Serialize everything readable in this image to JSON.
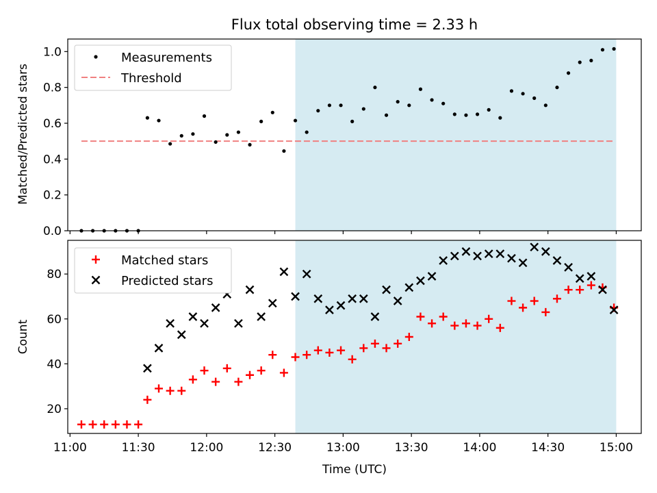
{
  "figure": {
    "title": "Flux total observing time = 2.33 h",
    "xlabel": "Time (UTC)",
    "xticks": [
      "11:00",
      "11:30",
      "12:00",
      "12:30",
      "13:00",
      "13:30",
      "14:00",
      "14:30",
      "15:00"
    ],
    "shaded_region": {
      "start": "12:39",
      "end": "15:00",
      "color": "#add8e6"
    }
  },
  "chart_data": [
    {
      "type": "scatter",
      "title": "Flux total observing time = 2.33 h",
      "xlabel": "",
      "ylabel": "Matched/Predicted stars",
      "xlim": [
        "10:59",
        "15:11"
      ],
      "ylim": [
        0,
        1.07
      ],
      "yticks": [
        "0.0",
        "0.2",
        "0.4",
        "0.6",
        "0.8",
        "1.0"
      ],
      "legend_position": "upper-left",
      "series": [
        {
          "name": "Measurements",
          "marker": "dot",
          "color": "#000000",
          "x": [
            "11:05",
            "11:10",
            "11:15",
            "11:20",
            "11:25",
            "11:30",
            "11:34",
            "11:39",
            "11:44",
            "11:49",
            "11:54",
            "11:59",
            "12:04",
            "12:09",
            "12:14",
            "12:19",
            "12:24",
            "12:29",
            "12:34",
            "12:39",
            "12:44",
            "12:49",
            "12:54",
            "12:59",
            "13:04",
            "13:09",
            "13:14",
            "13:19",
            "13:24",
            "13:29",
            "13:34",
            "13:39",
            "13:44",
            "13:49",
            "13:54",
            "13:59",
            "14:04",
            "14:09",
            "14:14",
            "14:19",
            "14:24",
            "14:29",
            "14:34",
            "14:39",
            "14:44",
            "14:49",
            "14:54",
            "14:59"
          ],
          "y": [
            0,
            0,
            0,
            0,
            0,
            0,
            0.63,
            0.615,
            0.485,
            0.53,
            0.54,
            0.64,
            0.495,
            0.535,
            0.55,
            0.48,
            0.61,
            0.66,
            0.445,
            0.615,
            0.55,
            0.67,
            0.7,
            0.7,
            0.61,
            0.68,
            0.8,
            0.645,
            0.72,
            0.7,
            0.79,
            0.73,
            0.71,
            0.65,
            0.645,
            0.65,
            0.675,
            0.63,
            0.78,
            0.765,
            0.74,
            0.7,
            0.8,
            0.88,
            0.94,
            0.95,
            1.01,
            1.015
          ]
        },
        {
          "name": "Threshold",
          "type": "line",
          "style": "dashed",
          "color": "#f08080",
          "x": [
            "11:05",
            "14:59"
          ],
          "y": [
            0.5,
            0.5
          ]
        }
      ]
    },
    {
      "type": "scatter",
      "xlabel": "Time (UTC)",
      "ylabel": "Count",
      "xlim": [
        "10:59",
        "15:11"
      ],
      "ylim": [
        9,
        95
      ],
      "yticks": [
        "20",
        "40",
        "60",
        "80"
      ],
      "legend_position": "upper-left",
      "series": [
        {
          "name": "Matched stars",
          "marker": "plus",
          "color": "#ff0000",
          "x": [
            "11:05",
            "11:10",
            "11:15",
            "11:20",
            "11:25",
            "11:30",
            "11:34",
            "11:39",
            "11:44",
            "11:49",
            "11:54",
            "11:59",
            "12:04",
            "12:09",
            "12:14",
            "12:19",
            "12:24",
            "12:29",
            "12:34",
            "12:39",
            "12:44",
            "12:49",
            "12:54",
            "12:59",
            "13:04",
            "13:09",
            "13:14",
            "13:19",
            "13:24",
            "13:29",
            "13:34",
            "13:39",
            "13:44",
            "13:49",
            "13:54",
            "13:59",
            "14:04",
            "14:09",
            "14:14",
            "14:19",
            "14:24",
            "14:29",
            "14:34",
            "14:39",
            "14:44",
            "14:49",
            "14:54",
            "14:59"
          ],
          "y": [
            13,
            13,
            13,
            13,
            13,
            13,
            24,
            29,
            28,
            28,
            33,
            37,
            32,
            38,
            32,
            35,
            37,
            44,
            36,
            43,
            44,
            46,
            45,
            46,
            42,
            47,
            49,
            47,
            49,
            52,
            61,
            58,
            61,
            57,
            58,
            57,
            60,
            56,
            68,
            65,
            68,
            63,
            69,
            73,
            73,
            75,
            74,
            65
          ]
        },
        {
          "name": "Predicted stars",
          "marker": "x",
          "color": "#000000",
          "x": [
            "11:34",
            "11:39",
            "11:44",
            "11:49",
            "11:54",
            "11:59",
            "12:04",
            "12:09",
            "12:14",
            "12:19",
            "12:24",
            "12:29",
            "12:34",
            "12:39",
            "12:44",
            "12:49",
            "12:54",
            "12:59",
            "13:04",
            "13:09",
            "13:14",
            "13:19",
            "13:24",
            "13:29",
            "13:34",
            "13:39",
            "13:44",
            "13:49",
            "13:54",
            "13:59",
            "14:04",
            "14:09",
            "14:14",
            "14:19",
            "14:24",
            "14:29",
            "14:34",
            "14:39",
            "14:44",
            "14:49",
            "14:54",
            "14:59"
          ],
          "y": [
            38,
            47,
            58,
            53,
            61,
            58,
            65,
            71,
            58,
            73,
            61,
            67,
            81,
            70,
            80,
            69,
            64,
            66,
            69,
            69,
            61,
            73,
            68,
            74,
            77,
            79,
            86,
            88,
            90,
            88,
            89,
            89,
            87,
            85,
            92,
            90,
            86,
            83,
            78,
            79,
            73,
            64
          ]
        }
      ]
    }
  ]
}
